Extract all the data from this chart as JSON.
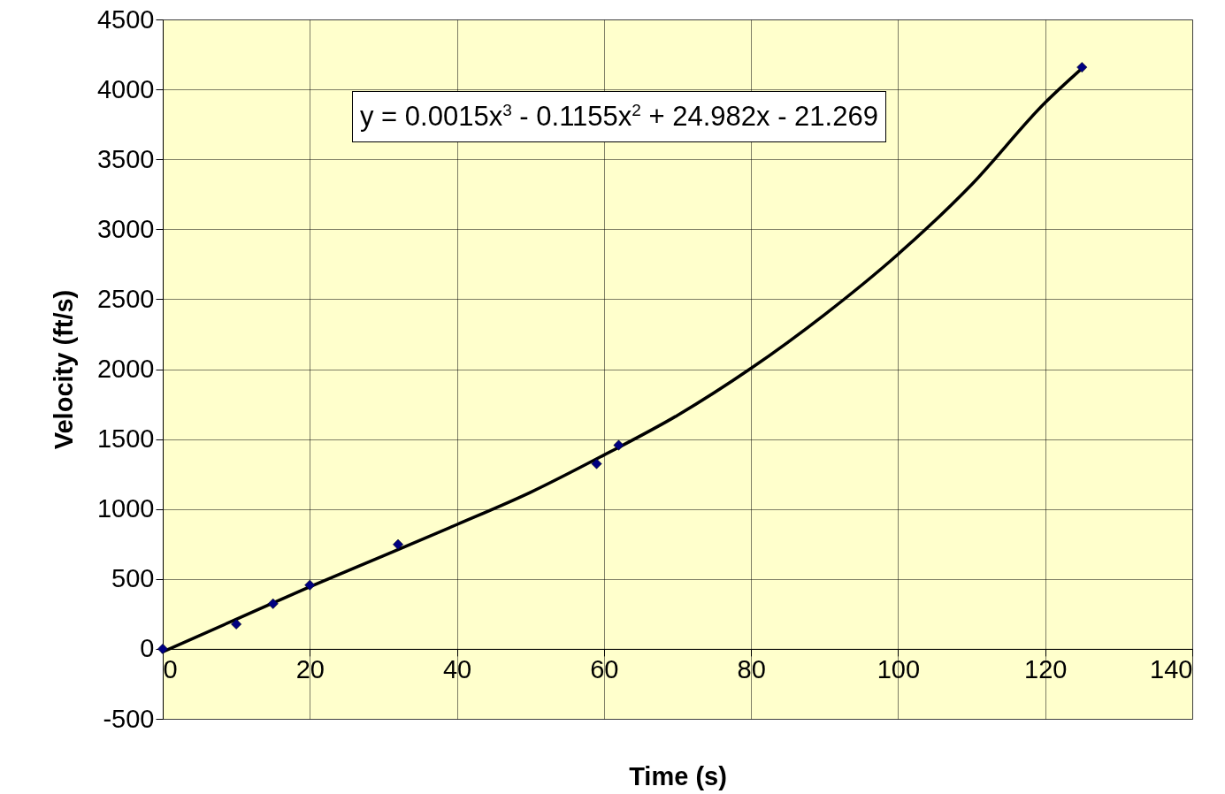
{
  "chart_data": {
    "type": "scatter",
    "xlabel": "Time (s)",
    "ylabel": "Velocity (ft/s)",
    "xlim": [
      0,
      140
    ],
    "ylim": [
      -500,
      4500
    ],
    "xticks": [
      0,
      20,
      40,
      60,
      80,
      100,
      120,
      140
    ],
    "yticks": [
      -500,
      0,
      500,
      1000,
      1500,
      2000,
      2500,
      3000,
      3500,
      4000,
      4500
    ],
    "grid": true,
    "marker": "diamond",
    "series": [
      {
        "color": "#000080",
        "x": [
          0,
          10,
          15,
          20,
          32,
          59,
          62,
          125
        ],
        "values": [
          0,
          177,
          323,
          456,
          747,
          1323,
          1456,
          4158
        ]
      },
      {
        "type": "line",
        "color": "#000000",
        "marker": "none",
        "line_style": "solid",
        "x": [
          0,
          10,
          20,
          30,
          40,
          50,
          60,
          70,
          80,
          90,
          100,
          110,
          120,
          125
        ],
        "values": [
          -21,
          212,
          444,
          666,
          889,
          1119,
          1386,
          1670,
          2006,
          2390,
          2822,
          3320,
          3906,
          4150
        ]
      }
    ],
    "annotations": [
      "y = 0.0015x$^{3}$ - 0.1155x$^{2}$ + 24.982x - 21.269"
    ]
  }
}
